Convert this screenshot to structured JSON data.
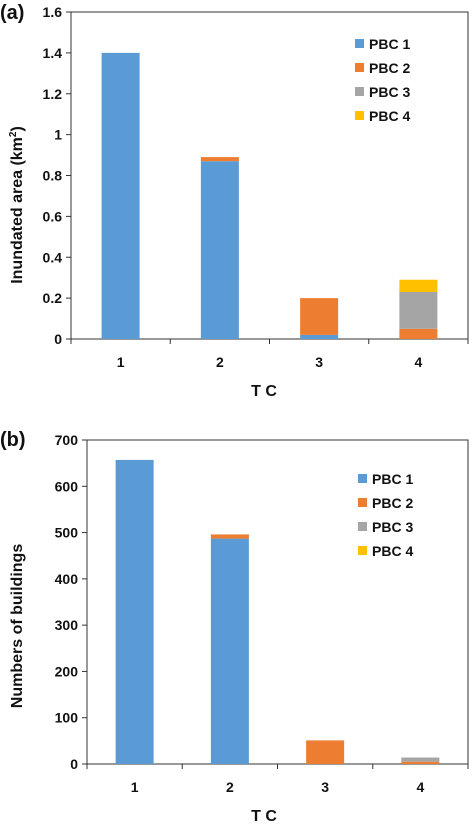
{
  "chart_data": [
    {
      "type": "bar",
      "stacked": true,
      "panel_label": "(a)",
      "categories": [
        "1",
        "2",
        "3",
        "4"
      ],
      "series": [
        {
          "name": "PBC 1",
          "values": [
            1.4,
            0.87,
            0.02,
            0.0
          ]
        },
        {
          "name": "PBC 2",
          "values": [
            0.0,
            0.02,
            0.18,
            0.05
          ]
        },
        {
          "name": "PBC 3",
          "values": [
            0.0,
            0.0,
            0.0,
            0.18
          ]
        },
        {
          "name": "PBC 4",
          "values": [
            0.0,
            0.0,
            0.0,
            0.06
          ]
        }
      ],
      "xlabel": "T C",
      "ylabel_main": "Inundated area (km",
      "ylabel_sup": "2",
      "ylabel_close": ")",
      "ylim": [
        0,
        1.6
      ],
      "yticks": [
        "0",
        "0.2",
        "0.4",
        "0.6",
        "0.8",
        "1",
        "1.2",
        "1.4",
        "1.6"
      ],
      "grid": false,
      "legend_position": "top-right"
    },
    {
      "type": "bar",
      "stacked": true,
      "panel_label": "(b)",
      "categories": [
        "1",
        "2",
        "3",
        "4"
      ],
      "series": [
        {
          "name": "PBC 1",
          "values": [
            657,
            487,
            0,
            0
          ]
        },
        {
          "name": "PBC 2",
          "values": [
            0,
            9,
            51,
            5
          ]
        },
        {
          "name": "PBC 3",
          "values": [
            0,
            0,
            0,
            9
          ]
        },
        {
          "name": "PBC 4",
          "values": [
            0,
            0,
            0,
            0
          ]
        }
      ],
      "xlabel": "T C",
      "ylabel": "Numbers of buildings",
      "ylim": [
        0,
        700
      ],
      "yticks": [
        "0",
        "100",
        "200",
        "300",
        "400",
        "500",
        "600",
        "700"
      ],
      "grid": false,
      "legend_position": "top-right"
    }
  ],
  "colors": {
    "PBC 1": "#5b9bd5",
    "PBC 2": "#ed7d31",
    "PBC 3": "#a5a5a5",
    "PBC 4": "#ffc000"
  }
}
